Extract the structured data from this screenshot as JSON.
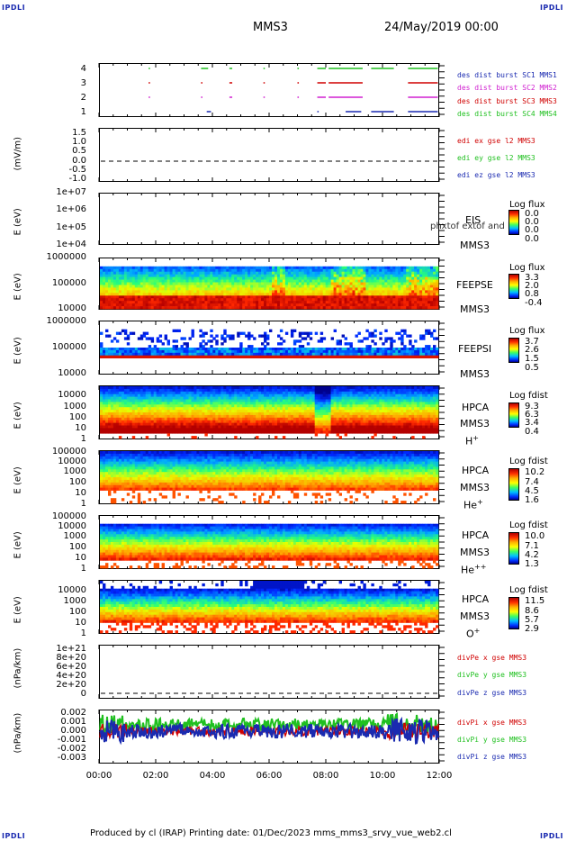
{
  "header": {
    "corner_label": "IPDLI",
    "spacecraft": "MMS3",
    "date": "24/May/2019 00:00"
  },
  "footer": {
    "text": "Produced by cl (IRAP)    Printing date: 01/Dec/2023    mms_mms3_srvy_vue_web2.cl"
  },
  "time_axis": {
    "ticks": [
      "00:00",
      "02:00",
      "04:00",
      "06:00",
      "08:00",
      "10:00",
      "12:00"
    ],
    "range_hours": [
      0,
      12
    ]
  },
  "colors": {
    "burst_c1": "#1a2ab0",
    "burst_c2": "#d020d0",
    "burst_c3": "#d00000",
    "burst_c4": "#20c020",
    "x_comp": "#d00000",
    "y_comp": "#20c020",
    "z_comp": "#1a2ab0"
  },
  "panels": {
    "burst": {
      "yticks": [
        "4",
        "3",
        "2",
        "1"
      ],
      "legend": [
        "des dist burst SC1 MMS1",
        "des dist burst SC2 MMS2",
        "des dist burst SC3 MMS3",
        "des dist burst SC4 MMS4"
      ]
    },
    "edi": {
      "ylabel": "(mV/m)",
      "yticks": [
        "1.5",
        "1.0",
        "0.5",
        "0.0",
        "-0.5",
        "-1.0"
      ],
      "legend": [
        "edi ex gse l2 MMS3",
        "edi ey gse l2 MMS3",
        "edi ez gse l2 MMS3"
      ]
    },
    "eis": {
      "ylabel": "E (eV)",
      "yticks": [
        "1e+07",
        "1e+06",
        "1e+05",
        "1e+04"
      ],
      "name": "EIS",
      "overlap_text": "phxtof extof and lowy electron to",
      "sc": "MMS3",
      "cb_title": "Log flux",
      "cb_ticks": [
        "0.0",
        "0.0",
        "0.0",
        "0.0"
      ]
    },
    "feepse": {
      "ylabel": "E (eV)",
      "yticks": [
        "1000000",
        "100000",
        "10000"
      ],
      "name": "FEEPSE",
      "sc": "MMS3",
      "cb_title": "Log flux",
      "cb_ticks": [
        "3.3",
        "2.0",
        "0.8",
        "-0.4"
      ]
    },
    "feepsi": {
      "ylabel": "E (eV)",
      "yticks": [
        "1000000",
        "100000",
        "10000"
      ],
      "name": "FEEPSI",
      "sc": "MMS3",
      "cb_title": "Log flux",
      "cb_ticks": [
        "3.7",
        "2.6",
        "1.5",
        "0.5"
      ]
    },
    "hpca_h": {
      "ylabel": "E (eV)",
      "yticks": [
        "10000",
        "1000",
        "100",
        "10",
        "1"
      ],
      "name": "HPCA",
      "sc": "MMS3",
      "species": "H",
      "charge": "+",
      "cb_title": "Log fdist",
      "cb_ticks": [
        "9.3",
        "6.3",
        "3.4",
        "0.4"
      ]
    },
    "hpca_he": {
      "ylabel": "E (eV)",
      "yticks": [
        "100000",
        "10000",
        "1000",
        "100",
        "10",
        "1"
      ],
      "name": "HPCA",
      "sc": "MMS3",
      "species": "He",
      "charge": "+",
      "cb_title": "Log fdist",
      "cb_ticks": [
        "10.2",
        "7.4",
        "4.5",
        "1.6"
      ]
    },
    "hpca_he2": {
      "ylabel": "E (eV)",
      "yticks": [
        "100000",
        "10000",
        "1000",
        "100",
        "10",
        "1"
      ],
      "name": "HPCA",
      "sc": "MMS3",
      "species": "He",
      "charge": "++",
      "cb_title": "Log fdist",
      "cb_ticks": [
        "10.0",
        "7.1",
        "4.2",
        "1.3"
      ]
    },
    "hpca_o": {
      "ylabel": "E (eV)",
      "yticks": [
        "10000",
        "1000",
        "100",
        "10",
        "1"
      ],
      "name": "HPCA",
      "sc": "MMS3",
      "species": "O",
      "charge": "+",
      "cb_title": "Log fdist",
      "cb_ticks": [
        "11.5",
        "8.6",
        "5.7",
        "2.9"
      ]
    },
    "divpe": {
      "ylabel": "(nPa/km)",
      "yticks": [
        "1e+21",
        "8e+20",
        "6e+20",
        "4e+20",
        "2e+20",
        "0"
      ],
      "legend": [
        "divPe x gse MMS3",
        "divPe y gse MMS3",
        "divPe z gse MMS3"
      ]
    },
    "divpi": {
      "ylabel": "(nPa/km)",
      "yticks": [
        "0.002",
        "0.001",
        "0.000",
        "-0.001",
        "-0.002",
        "-0.003"
      ],
      "legend": [
        "divPi x gse MMS3",
        "divPi y gse MMS3",
        "divPi z gse MMS3"
      ]
    }
  },
  "chart_data": {
    "type": "heatmap",
    "title": "MMS3",
    "xlabel": "",
    "x_range_hours": [
      0,
      12
    ],
    "burst_intervals_hours": {
      "MMS1": [
        [
          3.8,
          3.95
        ],
        [
          7.7,
          7.75
        ],
        [
          8.7,
          9.25
        ],
        [
          9.6,
          10.4
        ],
        [
          10.9,
          11.95
        ]
      ],
      "MMS2": [
        [
          1.75,
          1.8
        ],
        [
          3.6,
          3.65
        ],
        [
          4.6,
          4.7
        ],
        [
          5.8,
          5.85
        ],
        [
          7.0,
          7.05
        ],
        [
          7.7,
          8.0
        ],
        [
          8.1,
          9.3
        ],
        [
          10.9,
          11.95
        ]
      ],
      "MMS3": [
        [
          1.75,
          1.8
        ],
        [
          3.6,
          3.65
        ],
        [
          4.6,
          4.7
        ],
        [
          5.8,
          5.85
        ],
        [
          7.0,
          7.05
        ],
        [
          7.7,
          8.0
        ],
        [
          8.1,
          9.3
        ],
        [
          10.9,
          11.95
        ]
      ],
      "MMS4": [
        [
          1.75,
          1.8
        ],
        [
          3.6,
          3.85
        ],
        [
          4.6,
          4.7
        ],
        [
          5.8,
          5.85
        ],
        [
          7.0,
          7.05
        ],
        [
          7.7,
          8.0
        ],
        [
          8.1,
          9.3
        ],
        [
          9.6,
          10.4
        ],
        [
          10.9,
          11.95
        ]
      ]
    }
  }
}
